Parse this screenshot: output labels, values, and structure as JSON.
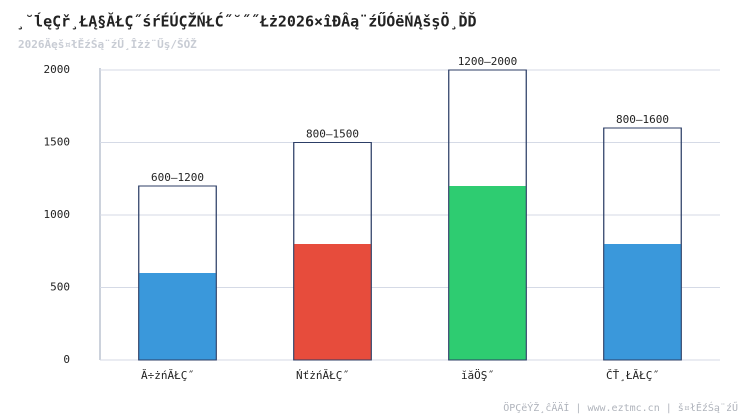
{
  "chart_data": {
    "type": "range-bar",
    "title": "¸˘ĺęÇř¸ŁĄ§ĂŁÇ˝śŕÉÚÇŽŃŁĆ˝˘˝˝Łż2026×îĐÂą¨źŰÓëŃĄšşÖ¸ĎĎ",
    "subtitle": "2026Äęš¤łĚźŚą¨źŰ¸Îżż¨Űş/ŠÓŽ",
    "categories": [
      "Ă÷żńĂŁÇ˝",
      "ŃťżńĂŁÇ˝",
      "ĭăÖŞ˝",
      "ČŤ¸ŁĂŁÇ˝"
    ],
    "low": [
      600,
      800,
      1200,
      800
    ],
    "high": [
      1200,
      1500,
      2000,
      1600
    ],
    "range_labels": [
      "600–1200",
      "800–1500",
      "1200–2000",
      "800–1600"
    ],
    "colors": [
      "#3a98db",
      "#e74c3c",
      "#2ecc71",
      "#3a98db"
    ],
    "outline_color": "#2c3e66",
    "ylim": [
      0,
      2000
    ],
    "yticks": [
      0,
      500,
      1000,
      1500,
      2000
    ],
    "grid": true,
    "footer": "ÖРÇëÝŽ¸ĉÄÄÍ | www.eztmc.cn | š¤łĚźŚą¨źŰ"
  }
}
